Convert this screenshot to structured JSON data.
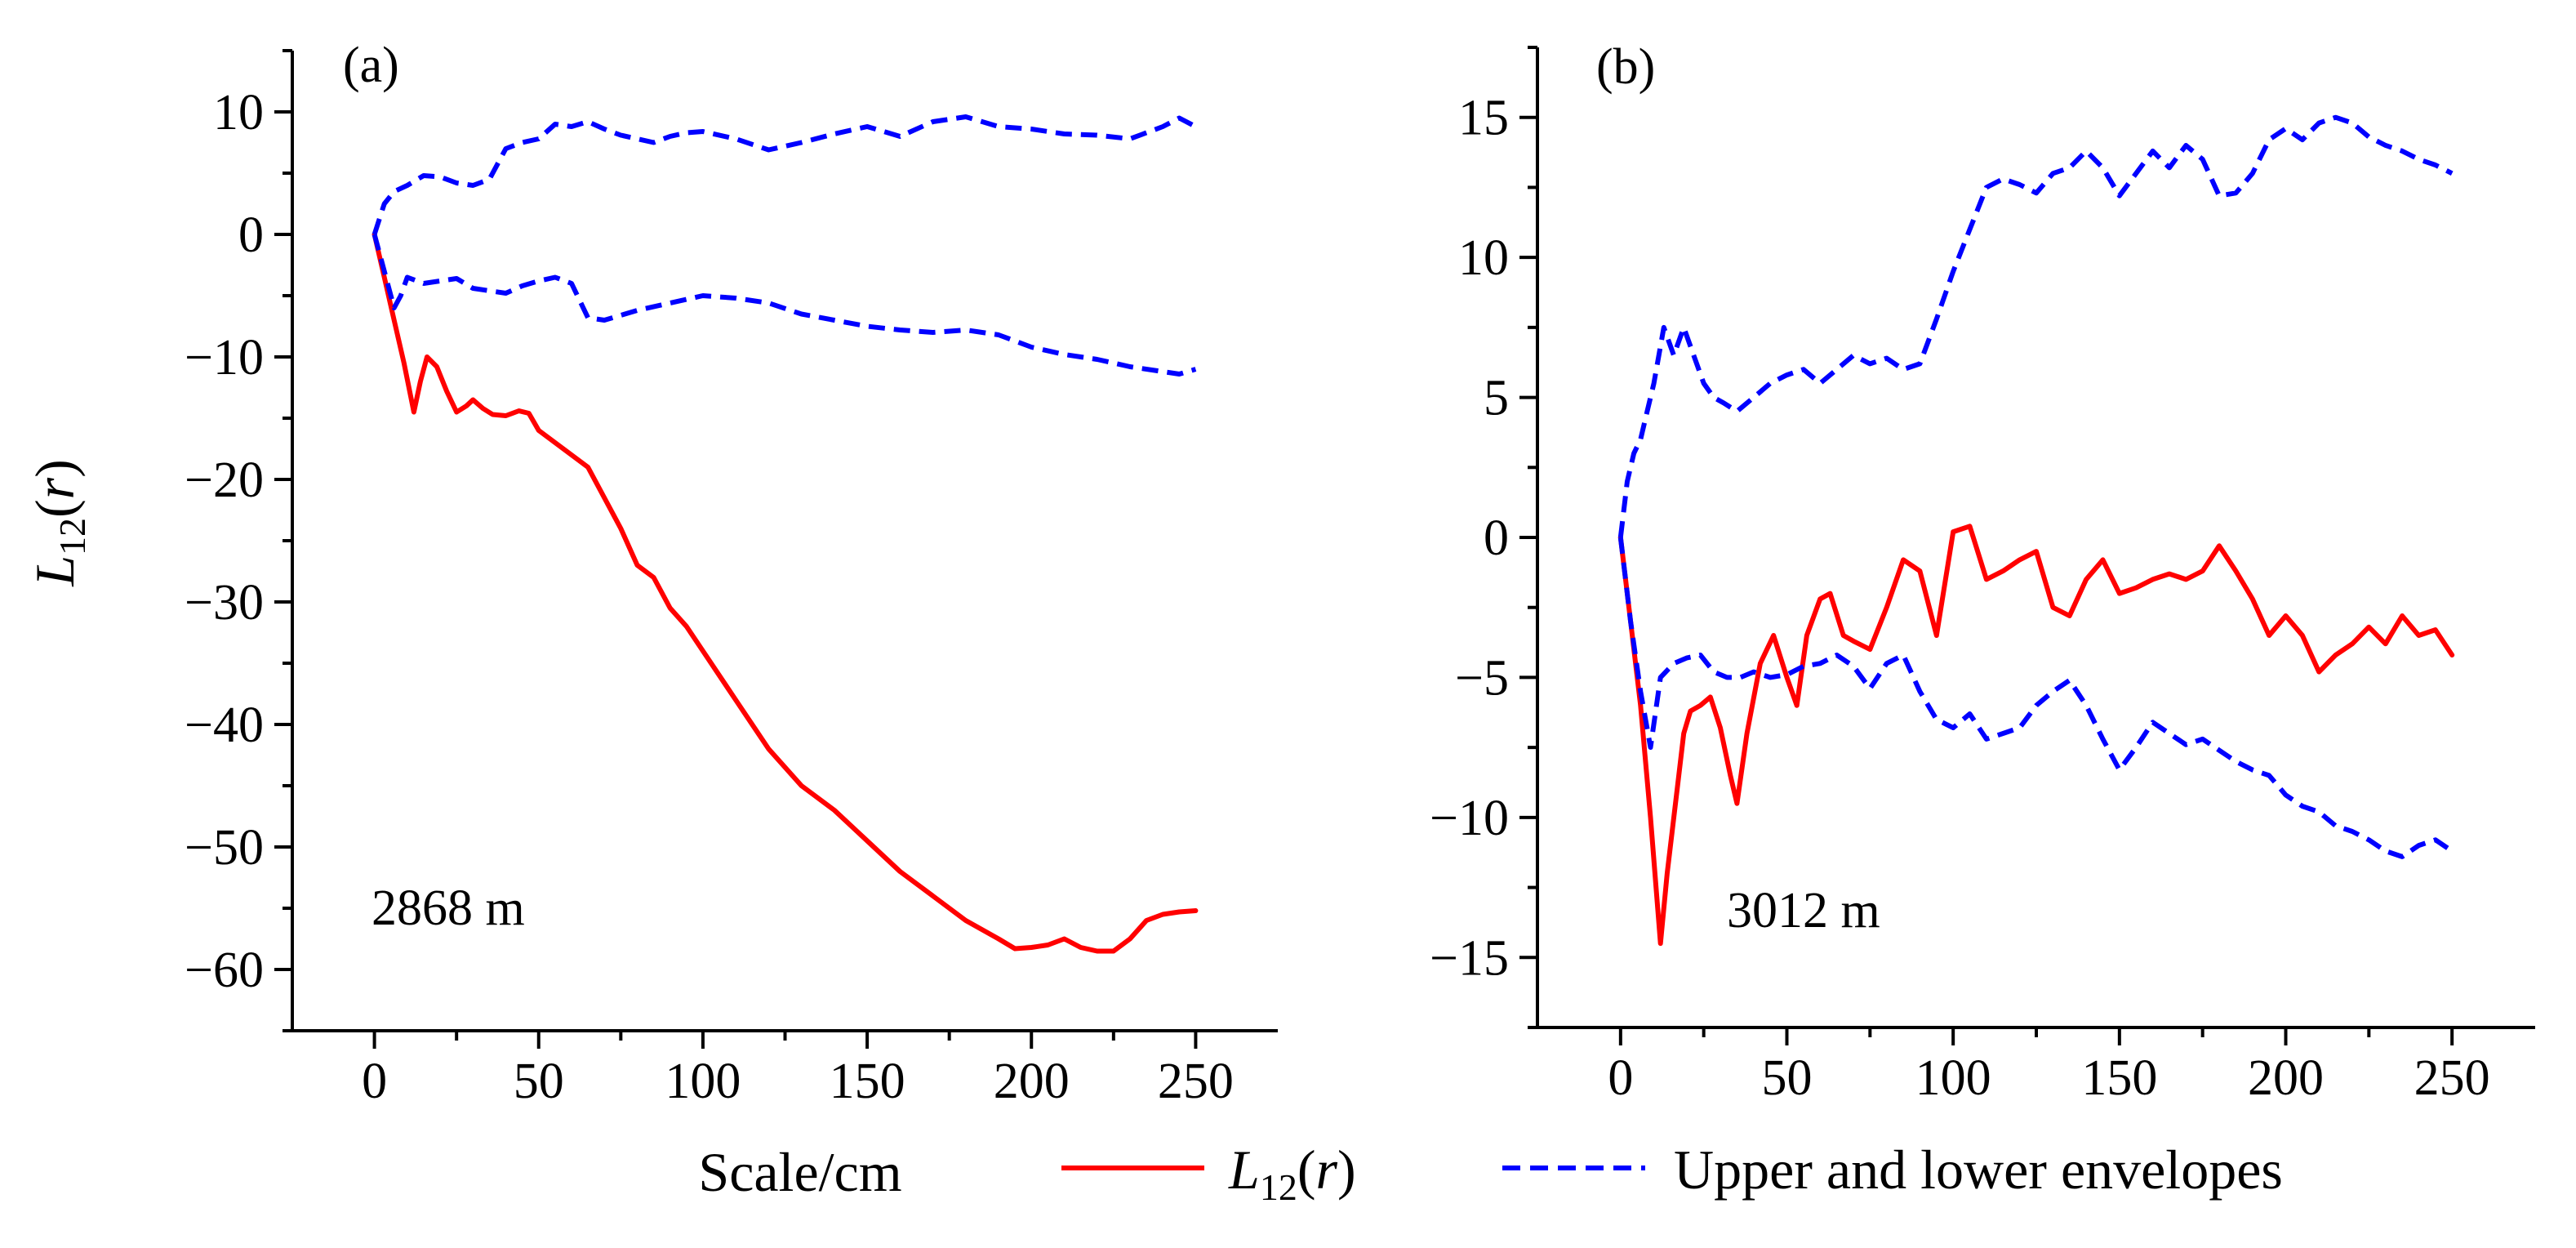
{
  "chart_data": [
    {
      "type": "line",
      "panel_label": "(a)",
      "annotation": "2868 m",
      "xlabel": "Scale/cm",
      "ylabel": "L12(r)",
      "xlim": [
        -25,
        275
      ],
      "ylim": [
        -65,
        15
      ],
      "x_ticks": [
        0,
        50,
        100,
        150,
        200,
        250
      ],
      "x_tick_labels": [
        "0",
        "50",
        "100",
        "150",
        "200",
        "250"
      ],
      "y_ticks": [
        10,
        0,
        -10,
        -20,
        -30,
        -40,
        -50,
        -60
      ],
      "y_tick_labels": [
        "10",
        "0",
        "−10",
        "−20",
        "−30",
        "−40",
        "−50",
        "−60"
      ],
      "series": [
        {
          "name": "L12(r)",
          "color": "#ff0000",
          "style": "solid",
          "x": [
            0,
            3,
            6,
            9,
            12,
            14,
            16,
            19,
            22,
            25,
            28,
            30,
            33,
            36,
            40,
            44,
            47,
            50,
            55,
            60,
            65,
            70,
            75,
            80,
            85,
            90,
            95,
            100,
            110,
            120,
            130,
            140,
            150,
            160,
            170,
            180,
            190,
            195,
            200,
            205,
            210,
            215,
            220,
            225,
            230,
            235,
            240,
            245,
            250
          ],
          "y": [
            0,
            -3.5,
            -7,
            -10.5,
            -14.5,
            -12,
            -10,
            -10.8,
            -12.8,
            -14.5,
            -14,
            -13.5,
            -14.2,
            -14.7,
            -14.8,
            -14.4,
            -14.6,
            -16,
            -17,
            -18,
            -19,
            -21.5,
            -24,
            -27,
            -28,
            -30.5,
            -32,
            -34,
            -38,
            -42,
            -45,
            -47,
            -49.5,
            -52,
            -54,
            -56,
            -57.5,
            -58.3,
            -58.2,
            -58,
            -57.5,
            -58.2,
            -58.5,
            -58.5,
            -57.5,
            -56,
            -55.5,
            -55.3,
            -55.2
          ]
        },
        {
          "name": "Upper envelope",
          "color": "#0000ff",
          "style": "dashed",
          "x": [
            0,
            3,
            6,
            10,
            15,
            20,
            25,
            30,
            35,
            40,
            45,
            50,
            55,
            60,
            65,
            70,
            75,
            80,
            85,
            90,
            95,
            100,
            110,
            120,
            130,
            140,
            150,
            160,
            170,
            180,
            190,
            200,
            210,
            220,
            230,
            240,
            245,
            250
          ],
          "y": [
            0,
            2.5,
            3.5,
            4,
            4.8,
            4.7,
            4.2,
            4,
            4.5,
            7,
            7.5,
            7.8,
            9,
            8.8,
            9.2,
            8.6,
            8.1,
            7.8,
            7.5,
            8,
            8.3,
            8.4,
            7.8,
            6.9,
            7.5,
            8.2,
            8.8,
            8,
            9.2,
            9.6,
            8.8,
            8.6,
            8.2,
            8.1,
            7.8,
            8.8,
            9.5,
            8.8
          ]
        },
        {
          "name": "Lower envelope",
          "color": "#0000ff",
          "style": "dashed",
          "x": [
            0,
            3,
            6,
            8,
            10,
            15,
            20,
            25,
            30,
            35,
            40,
            45,
            50,
            55,
            60,
            65,
            70,
            75,
            80,
            90,
            100,
            110,
            120,
            130,
            140,
            150,
            160,
            170,
            180,
            190,
            200,
            210,
            220,
            230,
            240,
            245,
            250
          ],
          "y": [
            0,
            -3,
            -6,
            -5,
            -3.5,
            -4,
            -3.8,
            -3.6,
            -4.4,
            -4.6,
            -4.8,
            -4.2,
            -3.8,
            -3.5,
            -4,
            -6.8,
            -7,
            -6.6,
            -6.2,
            -5.6,
            -5,
            -5.2,
            -5.6,
            -6.5,
            -7,
            -7.5,
            -7.8,
            -8,
            -7.8,
            -8.2,
            -9.2,
            -9.8,
            -10.2,
            -10.8,
            -11.2,
            -11.4,
            -11
          ]
        }
      ]
    },
    {
      "type": "line",
      "panel_label": "(b)",
      "annotation": "3012 m",
      "xlabel": "",
      "ylabel": "",
      "xlim": [
        -25,
        275
      ],
      "ylim": [
        -17.5,
        17.5
      ],
      "x_ticks": [
        0,
        50,
        100,
        150,
        200,
        250
      ],
      "x_tick_labels": [
        "0",
        "50",
        "100",
        "150",
        "200",
        "250"
      ],
      "y_ticks": [
        15,
        10,
        5,
        0,
        -5,
        -10,
        -15
      ],
      "y_tick_labels": [
        "15",
        "10",
        "5",
        "0",
        "−5",
        "−10",
        "−15"
      ],
      "series": [
        {
          "name": "L12(r)",
          "color": "#ff0000",
          "style": "solid",
          "x": [
            0,
            3,
            6,
            9,
            12,
            14,
            17,
            19,
            21,
            24,
            27,
            30,
            33,
            35,
            38,
            42,
            46,
            50,
            53,
            56,
            60,
            63,
            67,
            70,
            75,
            80,
            85,
            90,
            95,
            100,
            105,
            110,
            115,
            120,
            125,
            130,
            135,
            140,
            145,
            150,
            155,
            160,
            165,
            170,
            175,
            180,
            185,
            190,
            195,
            200,
            205,
            210,
            215,
            220,
            225,
            230,
            235,
            240,
            245,
            250
          ],
          "y": [
            0,
            -3,
            -6,
            -10,
            -14.5,
            -12,
            -9,
            -7,
            -6.2,
            -6,
            -5.7,
            -6.8,
            -8.5,
            -9.5,
            -7,
            -4.5,
            -3.5,
            -5,
            -6,
            -3.5,
            -2.2,
            -2,
            -3.5,
            -3.7,
            -4,
            -2.5,
            -0.8,
            -1.2,
            -3.5,
            0.2,
            0.4,
            -1.5,
            -1.2,
            -0.8,
            -0.5,
            -2.5,
            -2.8,
            -1.5,
            -0.8,
            -2,
            -1.8,
            -1.5,
            -1.3,
            -1.5,
            -1.2,
            -0.3,
            -1.2,
            -2.2,
            -3.5,
            -2.8,
            -3.5,
            -4.8,
            -4.2,
            -3.8,
            -3.2,
            -3.8,
            -2.8,
            -3.5,
            -3.3,
            -4.2
          ]
        },
        {
          "name": "Upper envelope",
          "color": "#0000ff",
          "style": "dashed",
          "x": [
            0,
            2,
            4,
            6,
            8,
            10,
            13,
            16,
            19,
            22,
            25,
            28,
            31,
            35,
            40,
            45,
            50,
            55,
            60,
            65,
            70,
            75,
            80,
            85,
            90,
            95,
            100,
            105,
            110,
            115,
            120,
            125,
            130,
            135,
            140,
            145,
            150,
            155,
            160,
            165,
            170,
            175,
            180,
            185,
            190,
            195,
            200,
            205,
            210,
            215,
            220,
            225,
            230,
            235,
            240,
            245,
            250
          ],
          "y": [
            0,
            2,
            3,
            3.5,
            4.5,
            5.5,
            7.5,
            6.5,
            7.5,
            6.5,
            5.5,
            5,
            4.8,
            4.5,
            5,
            5.5,
            5.8,
            6,
            5.5,
            6,
            6.5,
            6.2,
            6.4,
            6,
            6.2,
            7.8,
            9.5,
            11,
            12.5,
            12.8,
            12.6,
            12.3,
            13,
            13.2,
            13.8,
            13.2,
            12.2,
            13,
            13.8,
            13.2,
            14,
            13.5,
            12.2,
            12.3,
            13,
            14.2,
            14.6,
            14.2,
            14.8,
            15,
            14.8,
            14.3,
            14,
            13.8,
            13.5,
            13.3,
            13
          ]
        },
        {
          "name": "Lower envelope",
          "color": "#0000ff",
          "style": "dashed",
          "x": [
            0,
            3,
            6,
            9,
            12,
            16,
            20,
            24,
            28,
            32,
            36,
            40,
            45,
            50,
            55,
            60,
            65,
            70,
            75,
            80,
            85,
            90,
            95,
            100,
            105,
            110,
            115,
            120,
            125,
            130,
            135,
            140,
            145,
            150,
            155,
            160,
            165,
            170,
            175,
            180,
            185,
            190,
            195,
            200,
            205,
            210,
            215,
            220,
            225,
            230,
            235,
            240,
            245,
            250
          ],
          "y": [
            0,
            -3,
            -5.5,
            -7.5,
            -5,
            -4.5,
            -4.3,
            -4.2,
            -4.8,
            -5,
            -5,
            -4.8,
            -5,
            -4.9,
            -4.6,
            -4.5,
            -4.2,
            -4.6,
            -5.4,
            -4.5,
            -4.2,
            -5.5,
            -6.5,
            -6.8,
            -6.3,
            -7.2,
            -7,
            -6.8,
            -6,
            -5.5,
            -5.1,
            -6,
            -7.2,
            -8.3,
            -7.5,
            -6.6,
            -7,
            -7.4,
            -7.2,
            -7.6,
            -8,
            -8.3,
            -8.5,
            -9.2,
            -9.6,
            -9.8,
            -10.3,
            -10.5,
            -10.8,
            -11.2,
            -11.4,
            -11,
            -10.8,
            -11.2
          ]
        }
      ]
    }
  ],
  "legend": {
    "position": "bottom",
    "items": [
      {
        "label_main": "L",
        "label_sub": "12",
        "label_rest": "(",
        "label_var": "r",
        "label_close": ")",
        "color": "#ff0000",
        "style": "solid"
      },
      {
        "label": "Upper and lower envelopes",
        "color": "#0000ff",
        "style": "dashed"
      }
    ]
  },
  "shared_xlabel": "Scale/cm",
  "ylabel_parts": {
    "main": "L",
    "sub": "12",
    "open": "(",
    "var": "r",
    "close": ")"
  }
}
